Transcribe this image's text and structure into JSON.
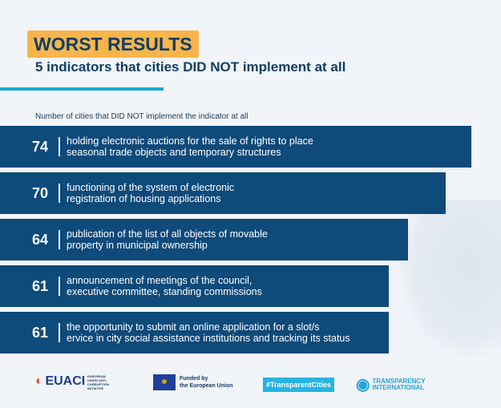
{
  "header": {
    "title": "WORST RESULTS",
    "subtitle": "5 indicators that cities DID NOT implement at all"
  },
  "colors": {
    "bar": "#0e4a7a",
    "title_bg": "#f9b54c",
    "accent": "#1aa7d8",
    "text": "#0f3f66"
  },
  "chart_data": {
    "type": "bar",
    "orientation": "horizontal",
    "xlabel": "Number of cities that DID NOT implement the indicator at all",
    "categories": [
      "holding electronic auctions for the sale of rights to place\nseasonal trade objects and temporary structures",
      "functioning of the system of electronic\nregistration of housing applications",
      "publication of the list of all objects of movable\nproperty in municipal ownership",
      "announcement of meetings of the council,\nexecutive committee, standing commissions",
      "the opportunity to submit an online application for a slot/s\nervice in city social assistance institutions and tracking its status"
    ],
    "values": [
      74,
      70,
      64,
      61,
      61
    ],
    "value_labels": [
      "74",
      "70",
      "64",
      "61",
      "61"
    ]
  },
  "footer": {
    "logos": [
      "EUACI",
      "EUROPEAN UNION ANTI-CORRUPTION INITIATIVE",
      "Funded by the European Union",
      "#TransparentCities",
      "TRANSPARENCY INTERNATIONAL UKRAINE"
    ],
    "euaci": "EUACI",
    "euaci_sub": "EUROPEAN UNION ANTI-CORRUPTION INITIATIVE",
    "eu": "Funded by\nthe European Union",
    "tc": "#TransparentCities",
    "ti": "TRANSPARENCY\nINTERNATIONAL",
    "ti_sub": "UKRAINE"
  }
}
